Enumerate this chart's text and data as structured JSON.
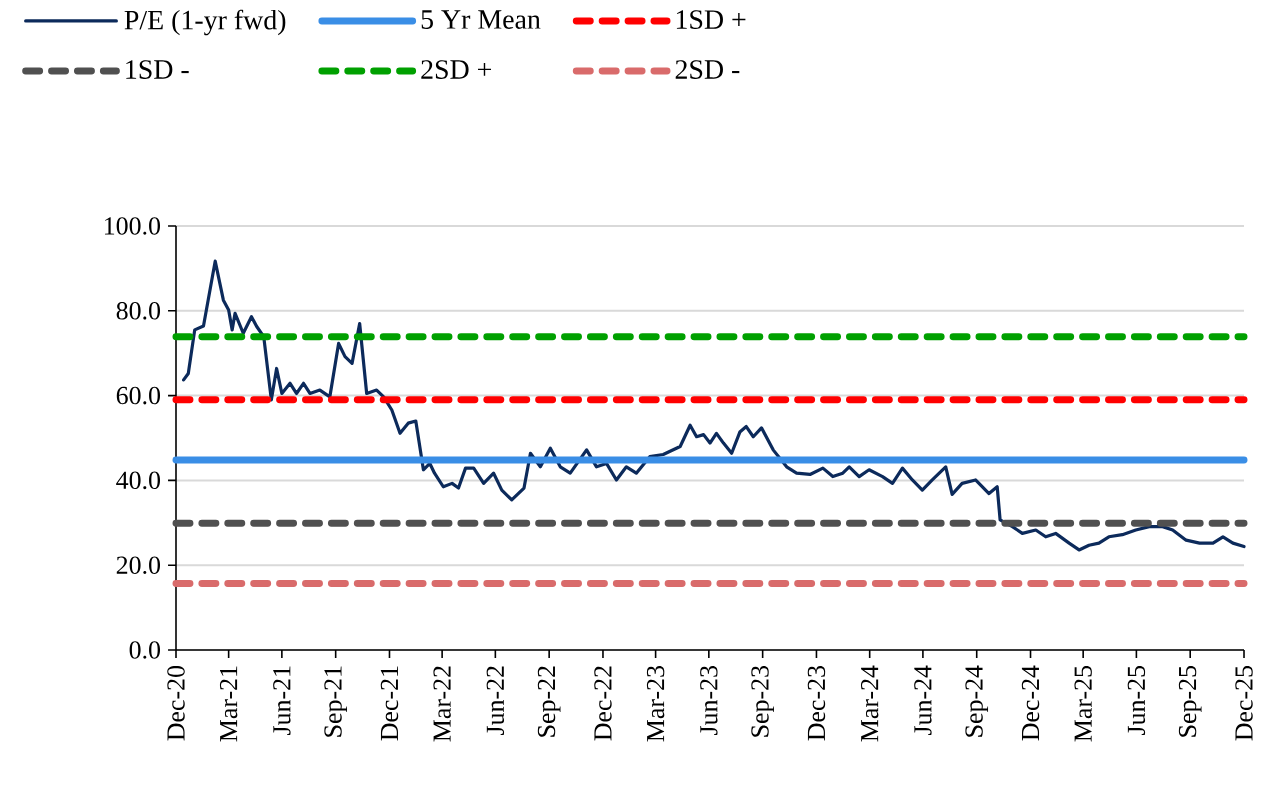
{
  "chart_data": {
    "type": "line",
    "xlim": [
      "2020-12-31",
      "2025-12-31"
    ],
    "ylim": [
      0,
      100
    ],
    "xticks": [
      {
        "value": "2020-12-31",
        "label": "Dec-20"
      },
      {
        "value": "2021-03-31",
        "label": "Mar-21"
      },
      {
        "value": "2021-06-30",
        "label": "Jun-21"
      },
      {
        "value": "2021-09-30",
        "label": "Sep-21"
      },
      {
        "value": "2021-12-31",
        "label": "Dec-21"
      },
      {
        "value": "2022-03-31",
        "label": "Mar-22"
      },
      {
        "value": "2022-06-30",
        "label": "Jun-22"
      },
      {
        "value": "2022-09-30",
        "label": "Sep-22"
      },
      {
        "value": "2022-12-31",
        "label": "Dec-22"
      },
      {
        "value": "2023-03-31",
        "label": "Mar-23"
      },
      {
        "value": "2023-06-30",
        "label": "Jun-23"
      },
      {
        "value": "2023-09-30",
        "label": "Sep-23"
      },
      {
        "value": "2023-12-31",
        "label": "Dec-23"
      },
      {
        "value": "2024-03-31",
        "label": "Mar-24"
      },
      {
        "value": "2024-06-30",
        "label": "Jun-24"
      },
      {
        "value": "2024-09-30",
        "label": "Sep-24"
      },
      {
        "value": "2024-12-31",
        "label": "Dec-24"
      },
      {
        "value": "2025-03-31",
        "label": "Mar-25"
      },
      {
        "value": "2025-06-30",
        "label": "Jun-25"
      },
      {
        "value": "2025-09-30",
        "label": "Sep-25"
      },
      {
        "value": "2025-12-31",
        "label": "Dec-25"
      }
    ],
    "yticks": [
      {
        "value": 0,
        "label": "0.0"
      },
      {
        "value": 20,
        "label": "20.0"
      },
      {
        "value": 40,
        "label": "40.0"
      },
      {
        "value": 60,
        "label": "60.0"
      },
      {
        "value": 80,
        "label": "80.0"
      },
      {
        "value": 100,
        "label": "100.0"
      }
    ],
    "grid": "y",
    "legend": "top",
    "marker": "none",
    "series": [
      {
        "name": "P/E (1-yr fwd)",
        "color": "#0c2a5b",
        "line_style": "solid",
        "x": [
          "2021-01-13",
          "2021-01-21",
          "2021-02-01",
          "2021-02-16",
          "2021-03-08",
          "2021-03-22",
          "2021-03-31",
          "2021-04-06",
          "2021-04-11",
          "2021-04-25",
          "2021-05-09",
          "2021-05-18",
          "2021-05-30",
          "2021-06-12",
          "2021-06-21",
          "2021-06-30",
          "2021-07-14",
          "2021-07-25",
          "2021-08-06",
          "2021-08-17",
          "2021-09-03",
          "2021-09-20",
          "2021-10-05",
          "2021-10-16",
          "2021-10-28",
          "2021-11-10",
          "2021-11-22",
          "2021-12-09",
          "2021-12-21",
          "2022-01-04",
          "2022-01-18",
          "2022-02-01",
          "2022-02-14",
          "2022-02-27",
          "2022-03-10",
          "2022-03-18",
          "2022-04-02",
          "2022-04-17",
          "2022-04-28",
          "2022-05-10",
          "2022-05-24",
          "2022-06-10",
          "2022-06-27",
          "2022-07-11",
          "2022-07-28",
          "2022-08-18",
          "2022-08-29",
          "2022-09-15",
          "2022-10-02",
          "2022-10-19",
          "2022-11-05",
          "2022-12-03",
          "2022-12-20",
          "2023-01-06",
          "2023-01-23",
          "2023-02-09",
          "2023-02-26",
          "2023-03-21",
          "2023-04-13",
          "2023-05-12",
          "2023-05-29",
          "2023-06-09",
          "2023-06-21",
          "2023-07-02",
          "2023-07-13",
          "2023-07-25",
          "2023-08-08",
          "2023-08-22",
          "2023-09-02",
          "2023-09-14",
          "2023-09-28",
          "2023-10-18",
          "2023-11-10",
          "2023-11-27",
          "2023-12-20",
          "2024-01-11",
          "2024-01-28",
          "2024-02-14",
          "2024-02-25",
          "2024-03-13",
          "2024-03-30",
          "2024-04-22",
          "2024-05-09",
          "2024-05-26",
          "2024-06-12",
          "2024-06-29",
          "2024-07-16",
          "2024-08-08",
          "2024-08-19",
          "2024-09-05",
          "2024-09-28",
          "2024-10-21",
          "2024-11-04",
          "2024-11-09",
          "2024-11-30",
          "2024-12-17",
          "2025-01-09",
          "2025-01-26",
          "2025-02-12",
          "2025-03-07",
          "2025-03-24",
          "2025-04-10",
          "2025-04-27",
          "2025-05-14",
          "2025-06-06",
          "2025-06-29",
          "2025-07-22",
          "2025-08-14",
          "2025-08-31",
          "2025-09-23",
          "2025-10-16",
          "2025-11-08",
          "2025-11-25",
          "2025-12-12",
          "2025-12-31"
        ],
        "values": [
          63.7,
          65.2,
          75.5,
          76.4,
          91.7,
          82.5,
          80.2,
          75.5,
          79.4,
          74.7,
          78.6,
          76.3,
          73.9,
          59.0,
          66.4,
          60.5,
          62.9,
          60.5,
          62.9,
          60.5,
          61.3,
          59.7,
          72.3,
          69.2,
          67.6,
          77.0,
          60.5,
          61.3,
          59.7,
          56.6,
          51.1,
          53.5,
          54.0,
          42.5,
          44.0,
          41.7,
          38.5,
          39.3,
          38.2,
          42.9,
          42.9,
          39.3,
          41.7,
          37.7,
          35.4,
          38.2,
          46.4,
          43.2,
          47.6,
          43.2,
          41.7,
          47.2,
          43.2,
          44.0,
          40.1,
          43.2,
          41.7,
          45.6,
          46.1,
          48.0,
          53.0,
          50.3,
          50.8,
          48.8,
          51.1,
          48.8,
          46.4,
          51.4,
          52.7,
          50.3,
          52.4,
          47.2,
          43.2,
          41.7,
          41.4,
          42.9,
          40.9,
          41.7,
          43.2,
          40.9,
          42.5,
          40.9,
          39.3,
          42.9,
          40.1,
          37.7,
          40.1,
          43.2,
          36.7,
          39.3,
          40.1,
          36.9,
          38.5,
          30.7,
          29.1,
          27.5,
          28.3,
          26.7,
          27.5,
          25.2,
          23.6,
          24.7,
          25.2,
          26.7,
          27.2,
          28.3,
          29.1,
          29.1,
          28.3,
          25.9,
          25.2,
          25.2,
          26.7,
          25.2,
          24.4
        ]
      },
      {
        "name": "5 Yr Mean",
        "color": "#3a8ee6",
        "line_style": "solid",
        "x": [
          "2020-12-31",
          "2025-12-31"
        ],
        "values": [
          44.8,
          44.8
        ]
      },
      {
        "name": "1SD +",
        "color": "#ff0000",
        "line_style": "dashed",
        "x": [
          "2020-12-31",
          "2025-12-31"
        ],
        "values": [
          59.0,
          59.0
        ]
      },
      {
        "name": "1SD -",
        "color": "#505050",
        "line_style": "dashed",
        "x": [
          "2020-12-31",
          "2025-12-31"
        ],
        "values": [
          29.9,
          29.9
        ]
      },
      {
        "name": "2SD +",
        "color": "#00a000",
        "line_style": "dashed",
        "x": [
          "2020-12-31",
          "2025-12-31"
        ],
        "values": [
          73.9,
          73.9
        ]
      },
      {
        "name": "2SD -",
        "color": "#d96b6b",
        "line_style": "dashed",
        "x": [
          "2020-12-31",
          "2025-12-31"
        ],
        "values": [
          15.7,
          15.7
        ]
      }
    ]
  }
}
